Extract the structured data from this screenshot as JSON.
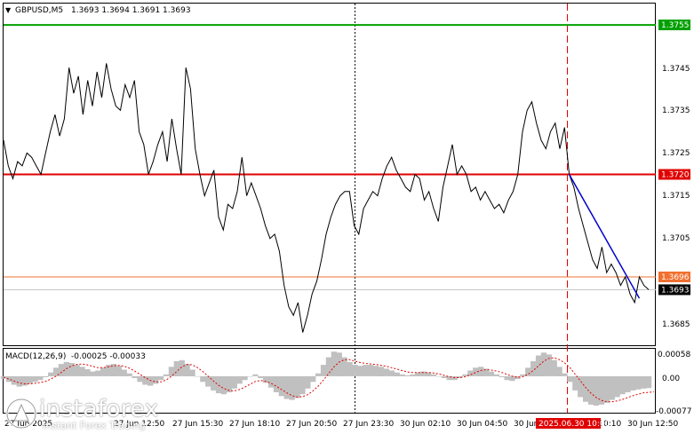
{
  "header": {
    "symbol": "GBPUSD,M5",
    "ohlc": "1.3693 1.3694 1.3691 1.3693"
  },
  "macd_header": {
    "label": "MACD(12,26,9)",
    "values": "-0.00025 -0.00033"
  },
  "price_levels": [
    {
      "id": "level-1-3755",
      "value": 1.3755,
      "label": "1.3755",
      "color": "#00a000"
    },
    {
      "id": "level-1-3720",
      "value": 1.372,
      "label": "1.3720",
      "color": "#e00000"
    },
    {
      "id": "level-1-3696",
      "value": 1.3696,
      "label": "1.3696",
      "color": "#f07030"
    },
    {
      "id": "current-price",
      "value": 1.3693,
      "label": "1.3693",
      "color": "#000000"
    }
  ],
  "price_axis_ticks": [
    "1.3745",
    "1.3735",
    "1.3725",
    "1.3715",
    "1.3705",
    "1.3685"
  ],
  "macd_axis_ticks": [
    "0.00058",
    "0.00",
    "-0.00077"
  ],
  "time_axis_ticks": [
    "27 Jun 2025",
    "27 Jun 12:50",
    "27 Jun 15:30",
    "27 Jun 18:10",
    "27 Jun 20:50",
    "27 Jun 23:30",
    "30 Jun 02:10",
    "30 Jun 04:50",
    "30 Jun 07:30",
    "30 Jun 10:10",
    "30 Jun 12:50"
  ],
  "time_marker": "2025.06.30 10:00",
  "colors": {
    "price_line": "#000000",
    "trend_line": "#0000cc",
    "macd_hist": "#c0c0c0",
    "macd_signal": "#e00000",
    "marker_line": "#e00000",
    "marker_bg": "#e00000"
  },
  "watermark": {
    "brand": "instaforex",
    "tagline": "Instant Forex Trading"
  },
  "chart_data": {
    "type": "line",
    "title": "GBPUSD,M5",
    "price_range": [
      1.368,
      1.376
    ],
    "series": [
      {
        "values": [
          1.3728,
          1.3722,
          1.3719,
          1.3723,
          1.3722,
          1.3725,
          1.3724,
          1.3722,
          1.372,
          1.3725,
          1.373,
          1.3734,
          1.3729,
          1.3733,
          1.3745,
          1.3739,
          1.3743,
          1.3734,
          1.3742,
          1.3736,
          1.3744,
          1.3738,
          1.3746,
          1.374,
          1.3736,
          1.3735,
          1.3741,
          1.3738,
          1.3742,
          1.373,
          1.3727,
          1.372,
          1.3723,
          1.3727,
          1.373,
          1.3723,
          1.3733,
          1.3726,
          1.372,
          1.3745,
          1.374,
          1.3726,
          1.372,
          1.3715,
          1.3718,
          1.3721,
          1.371,
          1.3707,
          1.3713,
          1.3712,
          1.3716,
          1.3724,
          1.3715,
          1.3718,
          1.3715,
          1.3712,
          1.3708,
          1.3705,
          1.3706,
          1.3702,
          1.3694,
          1.3689,
          1.3687,
          1.369,
          1.3683,
          1.3687,
          1.3692,
          1.3695,
          1.37,
          1.3706,
          1.371,
          1.3713,
          1.3715,
          1.3716,
          1.3716,
          1.3708,
          1.3706,
          1.3712,
          1.3714,
          1.3716,
          1.3715,
          1.3719,
          1.3722,
          1.3724,
          1.3721,
          1.3719,
          1.3717,
          1.3716,
          1.372,
          1.3719,
          1.3714,
          1.3716,
          1.3712,
          1.3709,
          1.3717,
          1.3722,
          1.3727,
          1.372,
          1.3722,
          1.372,
          1.3716,
          1.3717,
          1.3714,
          1.3716,
          1.3714,
          1.3712,
          1.3713,
          1.3711,
          1.3714,
          1.3716,
          1.372,
          1.373,
          1.3735,
          1.3737,
          1.3732,
          1.3728,
          1.3726,
          1.373,
          1.3732,
          1.3726,
          1.3731,
          1.372,
          1.3717,
          1.3712,
          1.3708,
          1.3704,
          1.37,
          1.3698,
          1.3703,
          1.3697,
          1.3699,
          1.3697,
          1.3694,
          1.3696,
          1.3692,
          1.369,
          1.3696,
          1.3694,
          1.3693
        ]
      }
    ],
    "trend_line": {
      "start": 1.372,
      "end": 1.3691
    },
    "macd_range": [
      -0.00077,
      0.00058
    ],
    "macd_histogram": [
      -5e-05,
      -0.00012,
      -0.00018,
      -0.00022,
      -0.0002,
      -0.00016,
      -0.00012,
      -8e-05,
      -2e-05,
      8e-05,
      0.00018,
      0.00026,
      0.0003,
      0.00028,
      0.00024,
      0.0002,
      0.00015,
      0.0001,
      0.00012,
      0.00018,
      0.00024,
      0.00026,
      0.00022,
      0.00014,
      6e-05,
      -4e-05,
      -0.00012,
      -0.00018,
      -0.0002,
      -0.00016,
      -8e-05,
      4e-05,
      0.0002,
      0.00032,
      0.00034,
      0.00026,
      0.00014,
      0.0,
      -0.00012,
      -0.00022,
      -0.0003,
      -0.00036,
      -0.00038,
      -0.00034,
      -0.00026,
      -0.00016,
      -8e-05,
      0.0,
      4e-05,
      -4e-05,
      -0.00014,
      -0.00024,
      -0.00034,
      -0.00042,
      -0.00048,
      -0.0005,
      -0.00046,
      -0.00038,
      -0.00026,
      -0.00012,
      6e-05,
      0.00024,
      0.0004,
      0.00052,
      0.0005,
      0.0004,
      0.0003,
      0.00024,
      0.00022,
      0.00024,
      0.00024,
      0.00022,
      0.0002,
      0.00016,
      0.00012,
      8e-05,
      4e-05,
      2e-05,
      4e-05,
      8e-05,
      0.0001,
      8e-05,
      4e-05,
      0.0,
      -4e-05,
      -8e-05,
      -8e-05,
      -4e-05,
      4e-05,
      0.00012,
      0.00018,
      0.0002,
      0.00016,
      0.0001,
      4e-05,
      -2e-05,
      -8e-05,
      -0.0001,
      -6e-05,
      4e-05,
      0.00018,
      0.00032,
      0.00044,
      0.0005,
      0.00046,
      0.00034,
      0.0002,
      6e-05,
      -0.00012,
      -0.0003,
      -0.00044,
      -0.00054,
      -0.0006,
      -0.00062,
      -0.0006,
      -0.00056,
      -0.0005,
      -0.00044,
      -0.00038,
      -0.00034,
      -0.0003,
      -0.00028,
      -0.00026,
      -0.00025
    ],
    "macd_signal": [
      -2e-05,
      -6e-05,
      -0.0001,
      -0.00014,
      -0.00016,
      -0.00016,
      -0.00015,
      -0.00013,
      -0.00011,
      -6e-05,
      0.0,
      8e-05,
      0.00016,
      0.00022,
      0.00025,
      0.00026,
      0.00024,
      0.00021,
      0.00018,
      0.00018,
      0.0002,
      0.00022,
      0.00023,
      0.00021,
      0.00017,
      0.00011,
      4e-05,
      -3e-05,
      -9e-05,
      -0.00012,
      -0.00012,
      -8e-05,
      0.0,
      0.0001,
      0.0002,
      0.00025,
      0.00024,
      0.00018,
      0.0001,
      0.0,
      -0.0001,
      -0.00019,
      -0.00026,
      -0.0003,
      -0.00031,
      -0.00028,
      -0.00023,
      -0.00017,
      -0.00011,
      -9e-05,
      -0.00011,
      -0.00015,
      -0.00021,
      -0.00028,
      -0.00035,
      -0.00041,
      -0.00044,
      -0.00043,
      -0.00039,
      -0.00031,
      -0.00021,
      -8e-05,
      6e-05,
      0.0002,
      0.0003,
      0.00035,
      0.00035,
      0.00032,
      0.00029,
      0.00027,
      0.00026,
      0.00025,
      0.00023,
      0.00021,
      0.00018,
      0.00015,
      0.00012,
      9e-05,
      8e-05,
      8e-05,
      8e-05,
      8e-05,
      7e-05,
      5e-05,
      2e-05,
      -1e-05,
      -3e-05,
      -3e-05,
      -1e-05,
      3e-05,
      8e-05,
      0.00012,
      0.00014,
      0.00013,
      0.00011,
      8e-05,
      4e-05,
      0.0,
      -2e-05,
      -1e-05,
      4e-05,
      0.00012,
      0.00022,
      0.00032,
      0.00038,
      0.00039,
      0.00035,
      0.00028,
      0.00018,
      4e-05,
      -0.0001,
      -0.00024,
      -0.00036,
      -0.00045,
      -0.00051,
      -0.00054,
      -0.00054,
      -0.00052,
      -0.00049,
      -0.00045,
      -0.00041,
      -0.00038,
      -0.00035,
      -0.00034,
      -0.00033
    ]
  }
}
